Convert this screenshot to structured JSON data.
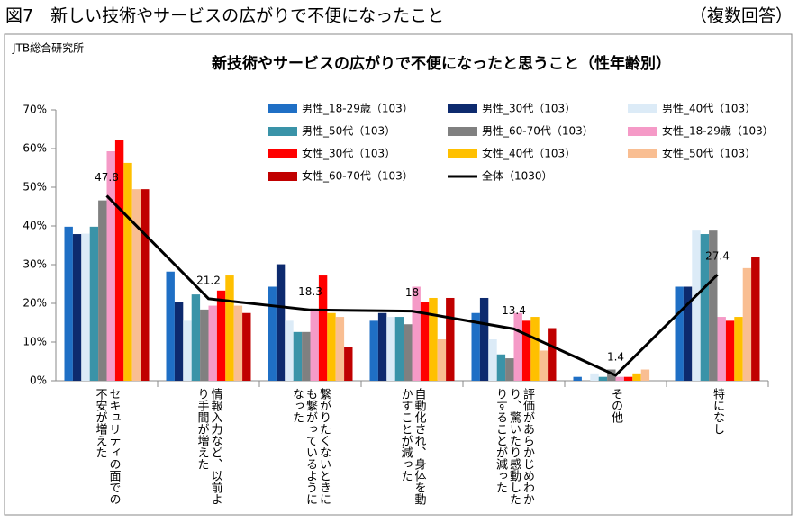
{
  "header": {
    "title": "図7　新しい技術やサービスの広がりで不便になったこと",
    "note": "（複数回答）"
  },
  "chart_data": {
    "type": "bar",
    "source": "JTB総合研究所",
    "title": "新技術やサービスの広がりで不便になったと思うこと（性年齢別）",
    "categories": [
      "セキュリティの面での不安が増えた",
      "情報入力など、以前より手間が増えた",
      "繋がりたくないときにも繋がっているようになった",
      "自動化され、身体を動かすことが減った",
      "評価があらかじめわかり、驚いたり感動したりすることが減った",
      "その他",
      "特になし"
    ],
    "ylim": [
      0,
      70
    ],
    "yticks": [
      {
        "value": 0,
        "label": "0%"
      },
      {
        "value": 10,
        "label": "10%"
      },
      {
        "value": 20,
        "label": "20%"
      },
      {
        "value": 30,
        "label": "30%"
      },
      {
        "value": 40,
        "label": "40%"
      },
      {
        "value": 50,
        "label": "50%"
      },
      {
        "value": 60,
        "label": "60%"
      },
      {
        "value": 70,
        "label": "70%"
      }
    ],
    "series": [
      {
        "name": "男性_18-29歳（103）",
        "color": "#1f6fc5",
        "values": [
          39.8,
          28.2,
          24.3,
          15.5,
          17.5,
          1.0,
          24.3
        ]
      },
      {
        "name": "男性_30代（103）",
        "color": "#0d2a6e",
        "values": [
          37.9,
          20.4,
          30.1,
          17.5,
          21.4,
          0,
          24.3
        ]
      },
      {
        "name": "男性_40代（103）",
        "color": "#dcebf7",
        "values": [
          38.0,
          15.5,
          15.5,
          16.5,
          10.7,
          1.9,
          38.8
        ]
      },
      {
        "name": "男性_50代（103）",
        "color": "#3a93a8",
        "values": [
          39.8,
          22.3,
          12.6,
          16.5,
          6.8,
          1.0,
          37.9
        ]
      },
      {
        "name": "男性_60-70代（103）",
        "color": "#808080",
        "values": [
          46.6,
          18.4,
          12.6,
          14.6,
          5.8,
          2.9,
          38.8
        ]
      },
      {
        "name": "女性_18-29歳（103）",
        "color": "#f59ac7",
        "values": [
          59.3,
          19.4,
          18.4,
          24.3,
          17.5,
          1.0,
          16.5
        ]
      },
      {
        "name": "女性_30代（103）",
        "color": "#ff0000",
        "values": [
          62.1,
          23.3,
          27.2,
          20.4,
          15.5,
          1.0,
          15.5
        ]
      },
      {
        "name": "女性_40代（103）",
        "color": "#ffc000",
        "values": [
          56.3,
          27.2,
          17.5,
          21.4,
          16.5,
          1.9,
          16.5
        ]
      },
      {
        "name": "女性_50代（103）",
        "color": "#f9be92",
        "values": [
          49.5,
          19.4,
          16.5,
          10.7,
          7.8,
          2.9,
          29.1
        ]
      },
      {
        "name": "女性_60-70代（103）",
        "color": "#c00000",
        "values": [
          49.5,
          17.5,
          8.7,
          21.4,
          13.6,
          0,
          32.0
        ]
      },
      {
        "name": "全体（1030）",
        "color": "#000000",
        "type": "line",
        "values": [
          47.8,
          21.2,
          18.3,
          18.0,
          13.4,
          1.4,
          27.4
        ]
      }
    ]
  }
}
